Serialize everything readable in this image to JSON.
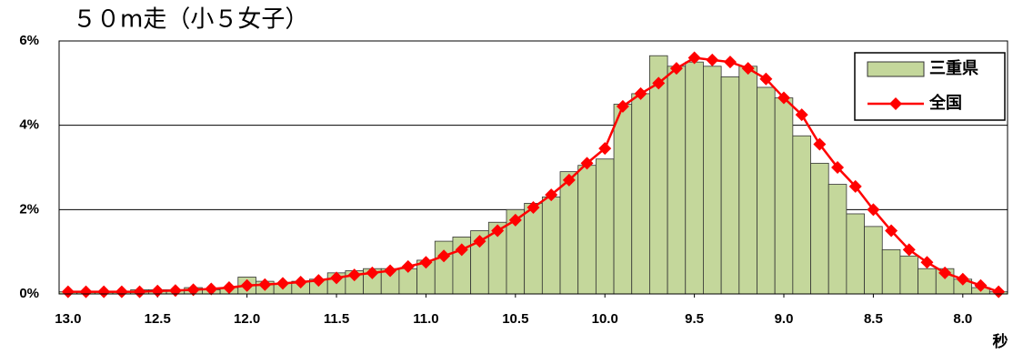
{
  "chart_data": {
    "type": "bar_line",
    "title": "５０m走（小５女子）",
    "x_label": "秒",
    "x": [
      13.0,
      12.9,
      12.8,
      12.7,
      12.6,
      12.5,
      12.4,
      12.3,
      12.2,
      12.1,
      12.0,
      11.9,
      11.8,
      11.7,
      11.6,
      11.5,
      11.4,
      11.3,
      11.2,
      11.1,
      11.0,
      10.9,
      10.8,
      10.7,
      10.6,
      10.5,
      10.4,
      10.3,
      10.2,
      10.1,
      10.0,
      9.9,
      9.8,
      9.7,
      9.6,
      9.5,
      9.4,
      9.3,
      9.2,
      9.1,
      9.0,
      8.9,
      8.8,
      8.7,
      8.6,
      8.5,
      8.4,
      8.3,
      8.2,
      8.1,
      8.0,
      7.9,
      7.8
    ],
    "series": [
      {
        "name": "三重県",
        "kind": "bar",
        "color": "#c4d79b",
        "values": [
          0.05,
          0.05,
          0.05,
          0.05,
          0.1,
          0.1,
          0.1,
          0.15,
          0.1,
          0.15,
          0.4,
          0.3,
          0.25,
          0.3,
          0.35,
          0.5,
          0.55,
          0.6,
          0.6,
          0.6,
          0.8,
          1.25,
          1.35,
          1.5,
          1.7,
          2.0,
          2.15,
          2.3,
          2.9,
          3.05,
          3.2,
          4.5,
          4.75,
          5.65,
          5.4,
          5.5,
          5.4,
          5.15,
          5.4,
          4.9,
          4.65,
          3.75,
          3.1,
          2.6,
          1.9,
          1.6,
          1.05,
          0.9,
          0.6,
          0.6,
          0.35,
          0.15,
          0.05
        ]
      },
      {
        "name": "全国",
        "kind": "line",
        "color": "#ff0000",
        "values": [
          0.05,
          0.05,
          0.05,
          0.05,
          0.05,
          0.07,
          0.08,
          0.1,
          0.12,
          0.15,
          0.2,
          0.22,
          0.25,
          0.28,
          0.32,
          0.38,
          0.45,
          0.5,
          0.55,
          0.65,
          0.75,
          0.9,
          1.05,
          1.25,
          1.5,
          1.75,
          2.05,
          2.35,
          2.7,
          3.1,
          3.45,
          4.45,
          4.75,
          5.0,
          5.35,
          5.6,
          5.55,
          5.5,
          5.35,
          5.1,
          4.65,
          4.25,
          3.55,
          3.0,
          2.55,
          2.0,
          1.5,
          1.05,
          0.75,
          0.5,
          0.35,
          0.2,
          0.05
        ]
      }
    ],
    "xlim": [
      13.05,
      7.75
    ],
    "xticks": [
      {
        "value": 13.0,
        "label": "13.0"
      },
      12.5,
      {
        "value": 12.0,
        "label": "12.0"
      },
      11.5,
      {
        "value": 11.0,
        "label": "11.0"
      },
      10.5,
      {
        "value": 10.0,
        "label": "10.0"
      },
      9.5,
      {
        "value": 9.0,
        "label": "9.0"
      },
      8.5,
      {
        "value": 8.0,
        "label": "8.0"
      }
    ],
    "ylim": [
      0,
      6
    ],
    "yticks": [
      {
        "value": 0,
        "label": "0%"
      },
      {
        "value": 2,
        "label": "2%"
      },
      {
        "value": 4,
        "label": "4%"
      },
      {
        "value": 6,
        "label": "6%"
      }
    ],
    "grid": true,
    "legend": "upper right"
  }
}
